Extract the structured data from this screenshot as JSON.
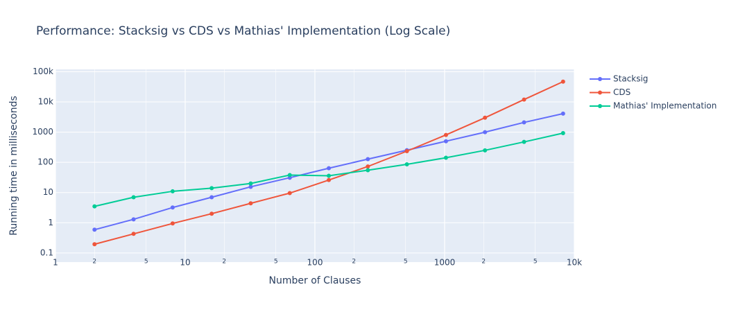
{
  "chart_data": {
    "type": "line",
    "title": "Performance: Stacksig vs CDS vs Mathias' Implementation (Log Scale)",
    "x_label": "Number of Clauses",
    "y_label": "Running time in milliseconds",
    "x": [
      2,
      4,
      8,
      16,
      32,
      64,
      128,
      256,
      512,
      1024,
      2048,
      4096,
      8192
    ],
    "series": [
      {
        "name": "Stacksig",
        "color": "#636efa",
        "values": [
          0.59,
          1.3,
          3.2,
          7.0,
          15.5,
          31,
          64,
          128,
          253,
          500,
          1000,
          2100,
          4100
        ]
      },
      {
        "name": "CDS",
        "color": "#ef553b",
        "values": [
          0.195,
          0.43,
          0.95,
          2.0,
          4.4,
          9.6,
          26,
          73,
          235,
          810,
          3000,
          12000,
          47000
        ]
      },
      {
        "name": "Mathias' Implementation",
        "color": "#00cc96",
        "values": [
          3.5,
          7,
          11,
          14,
          20,
          38,
          36,
          55,
          86,
          142,
          250,
          475,
          930
        ]
      }
    ],
    "xscale": "log",
    "yscale": "log",
    "xlim": [
      1,
      10000
    ],
    "ylim": [
      0.05,
      120000
    ],
    "xticks": [
      1,
      {
        "value": 2,
        "label": "2"
      },
      {
        "value": 5,
        "label": "5"
      },
      10,
      {
        "value": 20,
        "label": "2"
      },
      {
        "value": 50,
        "label": "5"
      },
      100,
      {
        "value": 200,
        "label": "2"
      },
      {
        "value": 500,
        "label": "5"
      },
      1000,
      {
        "value": 2000,
        "label": "2"
      },
      {
        "value": 5000,
        "label": "5"
      },
      {
        "value": 10000,
        "label": "10k"
      }
    ],
    "yticks": [
      0.1,
      1,
      10,
      100,
      1000,
      {
        "value": 10000,
        "label": "10k"
      },
      {
        "value": 100000,
        "label": "100k"
      }
    ],
    "grid": true,
    "legend": "top-right"
  }
}
